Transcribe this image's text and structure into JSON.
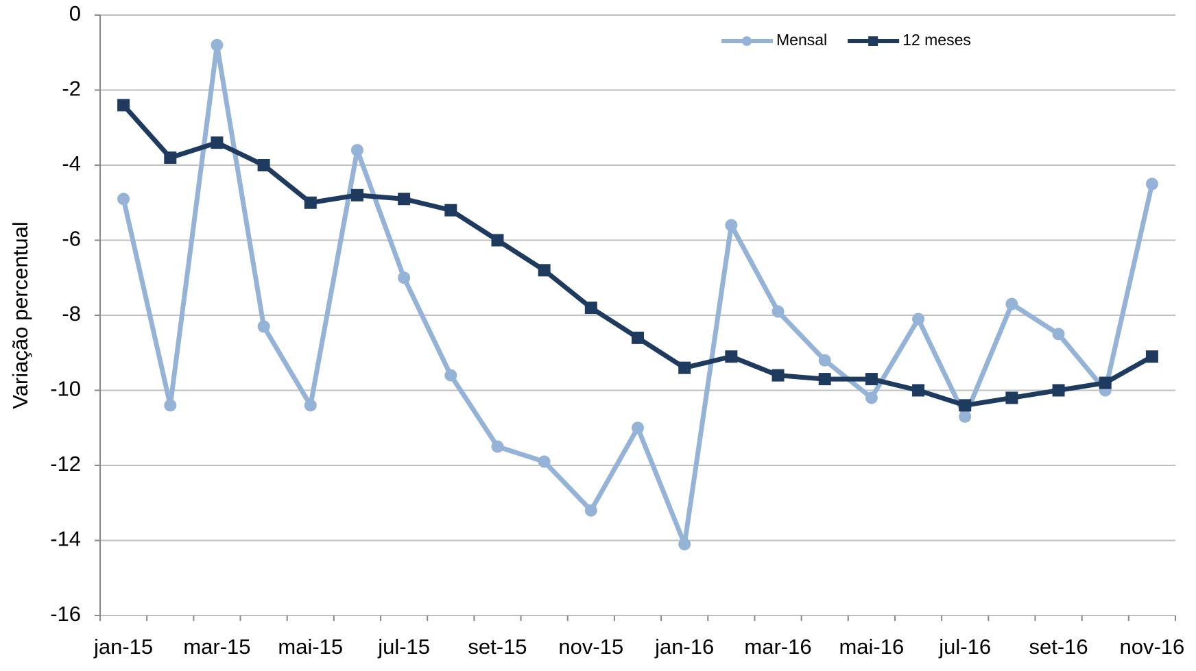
{
  "chart_data": {
    "type": "line",
    "y_label": "Variação percentual",
    "categories": [
      "jan-15",
      null,
      "mar-15",
      null,
      "mai-15",
      null,
      "jul-15",
      null,
      "set-15",
      null,
      "nov-15",
      null,
      "jan-16",
      null,
      "mar-16",
      null,
      "mai-16",
      null,
      "jul-16",
      null,
      "set-16",
      null,
      "nov-16"
    ],
    "series": [
      {
        "name": "Mensal",
        "color": "#95b3d7",
        "marker": "circle",
        "values": [
          -4.9,
          -10.4,
          -0.8,
          -8.3,
          -10.4,
          -3.6,
          -7.0,
          -9.6,
          -11.5,
          -11.9,
          -13.2,
          -11.0,
          -14.1,
          -5.6,
          -7.9,
          -9.2,
          -10.2,
          -8.1,
          -10.7,
          -7.7,
          -8.5,
          -10.0,
          -4.5
        ]
      },
      {
        "name": "12 meses",
        "color": "#1f3a5f",
        "marker": "square",
        "values": [
          -2.4,
          -3.8,
          -3.4,
          -4.0,
          -5.0,
          -4.8,
          -4.9,
          -5.2,
          -6.0,
          -6.8,
          -7.8,
          -8.6,
          -9.4,
          -9.1,
          -9.6,
          -9.7,
          -9.7,
          -10.0,
          -10.4,
          -10.2,
          -10.0,
          -9.8,
          -9.1
        ]
      }
    ],
    "ylim": [
      -16,
      0
    ],
    "yticks": [
      0,
      -2,
      -4,
      -6,
      -8,
      -10,
      -12,
      -14,
      -16
    ],
    "grid": true,
    "legend": "top"
  }
}
